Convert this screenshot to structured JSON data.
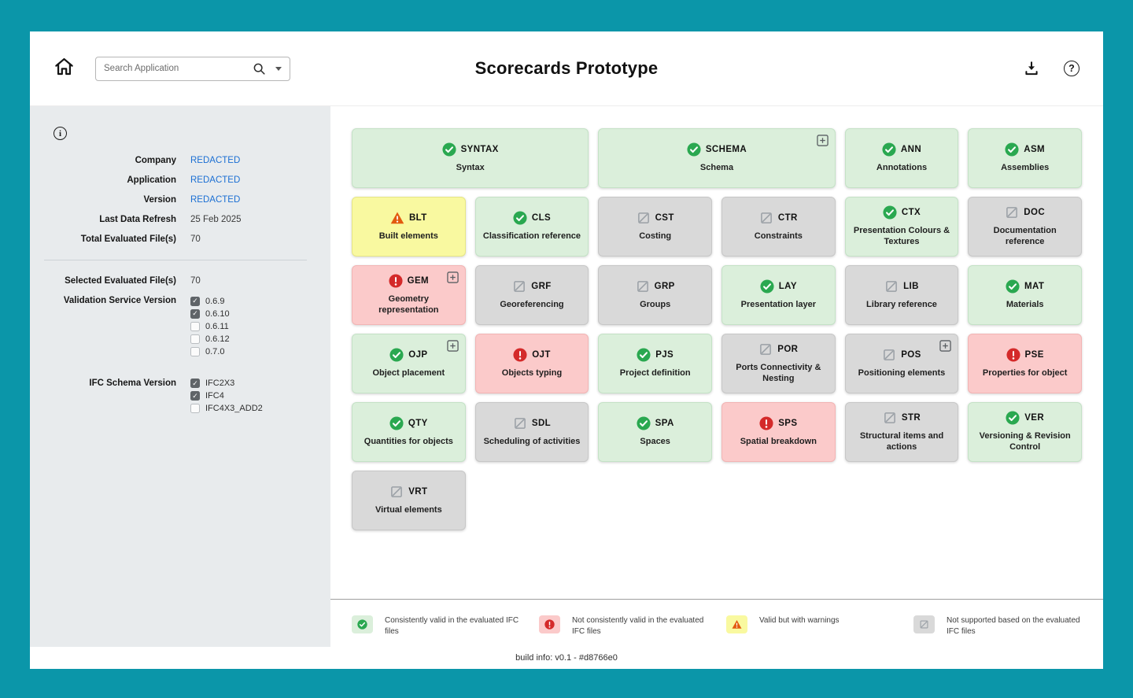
{
  "header": {
    "title": "Scorecards Prototype",
    "search_placeholder": "Search Application"
  },
  "sidebar": {
    "fields": [
      {
        "label": "Company",
        "value": "REDACTED",
        "link": true
      },
      {
        "label": "Application",
        "value": "REDACTED",
        "link": true
      },
      {
        "label": "Version",
        "value": "REDACTED",
        "link": true
      },
      {
        "label": "Last Data Refresh",
        "value": "25 Feb 2025",
        "link": false
      },
      {
        "label": "Total Evaluated File(s)",
        "value": "70",
        "link": false
      }
    ],
    "selected": {
      "label": "Selected Evaluated File(s)",
      "value": "70"
    },
    "filters": [
      {
        "label": "Validation Service Version",
        "options": [
          {
            "label": "0.6.9",
            "checked": true
          },
          {
            "label": "0.6.10",
            "checked": true
          },
          {
            "label": "0.6.11",
            "checked": false
          },
          {
            "label": "0.6.12",
            "checked": false
          },
          {
            "label": "0.7.0",
            "checked": false
          }
        ]
      },
      {
        "label": "IFC Schema Version",
        "options": [
          {
            "label": "IFC2X3",
            "checked": true
          },
          {
            "label": "IFC4",
            "checked": true
          },
          {
            "label": "IFC4X3_ADD2",
            "checked": false
          }
        ]
      }
    ]
  },
  "main": {
    "cards": [
      {
        "code": "SYNTAX",
        "label": "Syntax",
        "status": "valid",
        "span": 2
      },
      {
        "code": "SCHEMA",
        "label": "Schema",
        "status": "valid",
        "span": 2,
        "expandable": true
      },
      {
        "code": "ANN",
        "label": "Annotations",
        "status": "valid"
      },
      {
        "code": "ASM",
        "label": "Assemblies",
        "status": "valid"
      },
      {
        "code": "BLT",
        "label": "Built elements",
        "status": "warning"
      },
      {
        "code": "CLS",
        "label": "Classification reference",
        "status": "valid"
      },
      {
        "code": "CST",
        "label": "Costing",
        "status": "not_supported"
      },
      {
        "code": "CTR",
        "label": "Constraints",
        "status": "not_supported"
      },
      {
        "code": "CTX",
        "label": "Presentation Colours & Textures",
        "status": "valid"
      },
      {
        "code": "DOC",
        "label": "Documentation reference",
        "status": "not_supported"
      },
      {
        "code": "GEM",
        "label": "Geometry representation",
        "status": "error",
        "expandable": true
      },
      {
        "code": "GRF",
        "label": "Georeferencing",
        "status": "not_supported"
      },
      {
        "code": "GRP",
        "label": "Groups",
        "status": "not_supported"
      },
      {
        "code": "LAY",
        "label": "Presentation layer",
        "status": "valid"
      },
      {
        "code": "LIB",
        "label": "Library reference",
        "status": "not_supported"
      },
      {
        "code": "MAT",
        "label": "Materials",
        "status": "valid"
      },
      {
        "code": "OJP",
        "label": "Object placement",
        "status": "valid",
        "expandable": true
      },
      {
        "code": "OJT",
        "label": "Objects typing",
        "status": "error"
      },
      {
        "code": "PJS",
        "label": "Project definition",
        "status": "valid"
      },
      {
        "code": "POR",
        "label": "Ports Connectivity & Nesting",
        "status": "not_supported"
      },
      {
        "code": "POS",
        "label": "Positioning elements",
        "status": "not_supported",
        "expandable": true
      },
      {
        "code": "PSE",
        "label": "Properties for object",
        "status": "error"
      },
      {
        "code": "QTY",
        "label": "Quantities for objects",
        "status": "valid"
      },
      {
        "code": "SDL",
        "label": "Scheduling of activities",
        "status": "not_supported"
      },
      {
        "code": "SPA",
        "label": "Spaces",
        "status": "valid"
      },
      {
        "code": "SPS",
        "label": "Spatial breakdown",
        "status": "error"
      },
      {
        "code": "STR",
        "label": "Structural items and actions",
        "status": "not_supported"
      },
      {
        "code": "VER",
        "label": "Versioning & Revision Control",
        "status": "valid"
      },
      {
        "code": "VRT",
        "label": "Virtual elements",
        "status": "not_supported"
      }
    ]
  },
  "legend": {
    "items": [
      {
        "status": "valid",
        "text": "Consistently valid in the evaluated IFC files"
      },
      {
        "status": "error",
        "text": "Not consistently valid in the evaluated IFC files"
      },
      {
        "status": "warning",
        "text": "Valid but with warnings"
      },
      {
        "status": "not_supported",
        "text": "Not supported based on the evaluated IFC files"
      }
    ]
  },
  "footer": {
    "build_info": "build info: v0.1 - #d8766e0"
  },
  "colors": {
    "frame_teal": "#0b96a9",
    "sidebar_bg": "#e8ebed",
    "valid_bg": "#dbefdb",
    "valid_icon": "#2aa850",
    "error_bg": "#fbcaca",
    "error_icon": "#d42a2a",
    "warning_bg": "#f9f9a0",
    "warning_icon": "#e25a0f",
    "not_supported_bg": "#d9d9d9",
    "not_supported_icon": "#9aa0a6",
    "link_blue": "#1b6fd3"
  }
}
